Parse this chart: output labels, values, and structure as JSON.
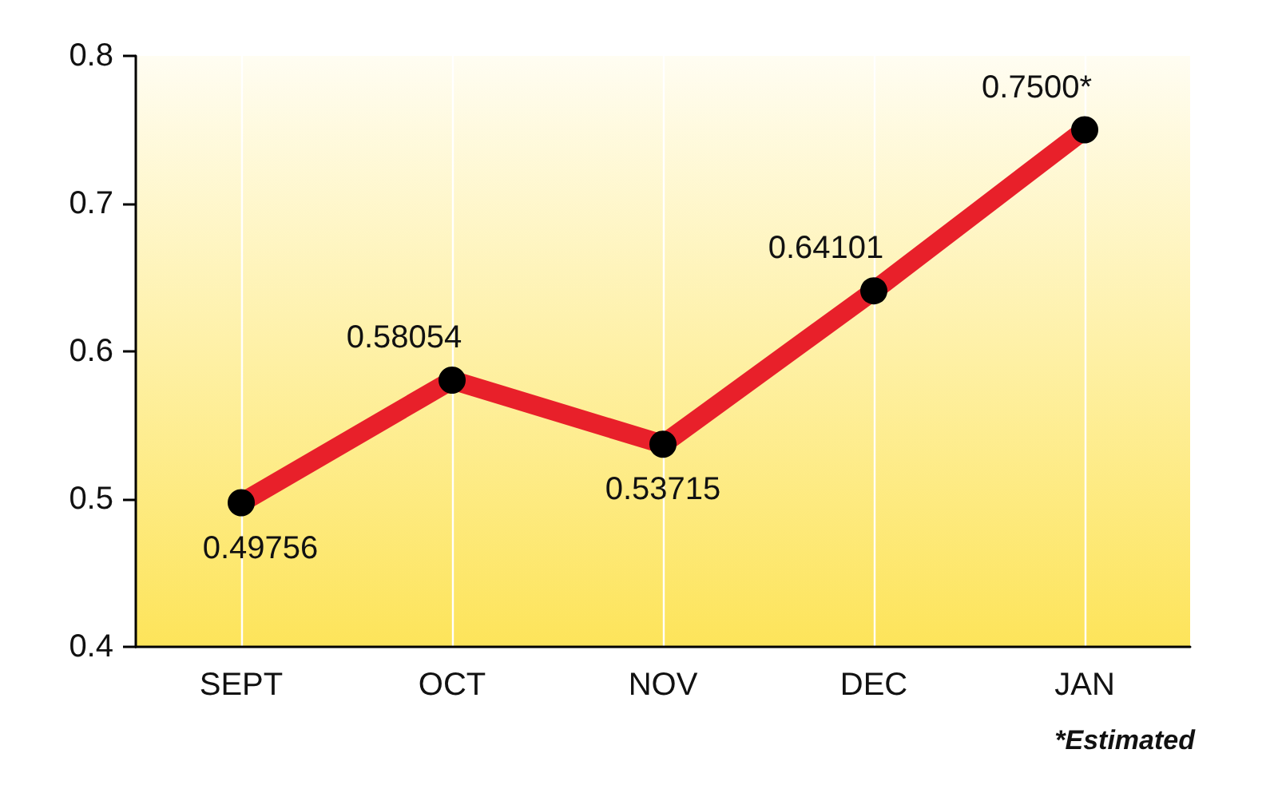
{
  "chart_data": {
    "type": "line",
    "categories": [
      "SEPT",
      "OCT",
      "NOV",
      "DEC",
      "JAN"
    ],
    "series": [
      {
        "color": "#e8202a",
        "values": [
          0.49756,
          0.58054,
          0.53715,
          0.64101,
          0.75
        ],
        "value_labels": [
          "0.49756",
          "0.58054",
          "0.53715",
          "0.64101",
          "0.7500*"
        ]
      }
    ],
    "ylim": [
      0.4,
      0.8
    ],
    "yticks": [
      0.4,
      0.5,
      0.6,
      0.7,
      0.8
    ],
    "grid": "x",
    "marker": "circle",
    "line_style": "solid",
    "annotations": [
      "*Estimated"
    ]
  }
}
